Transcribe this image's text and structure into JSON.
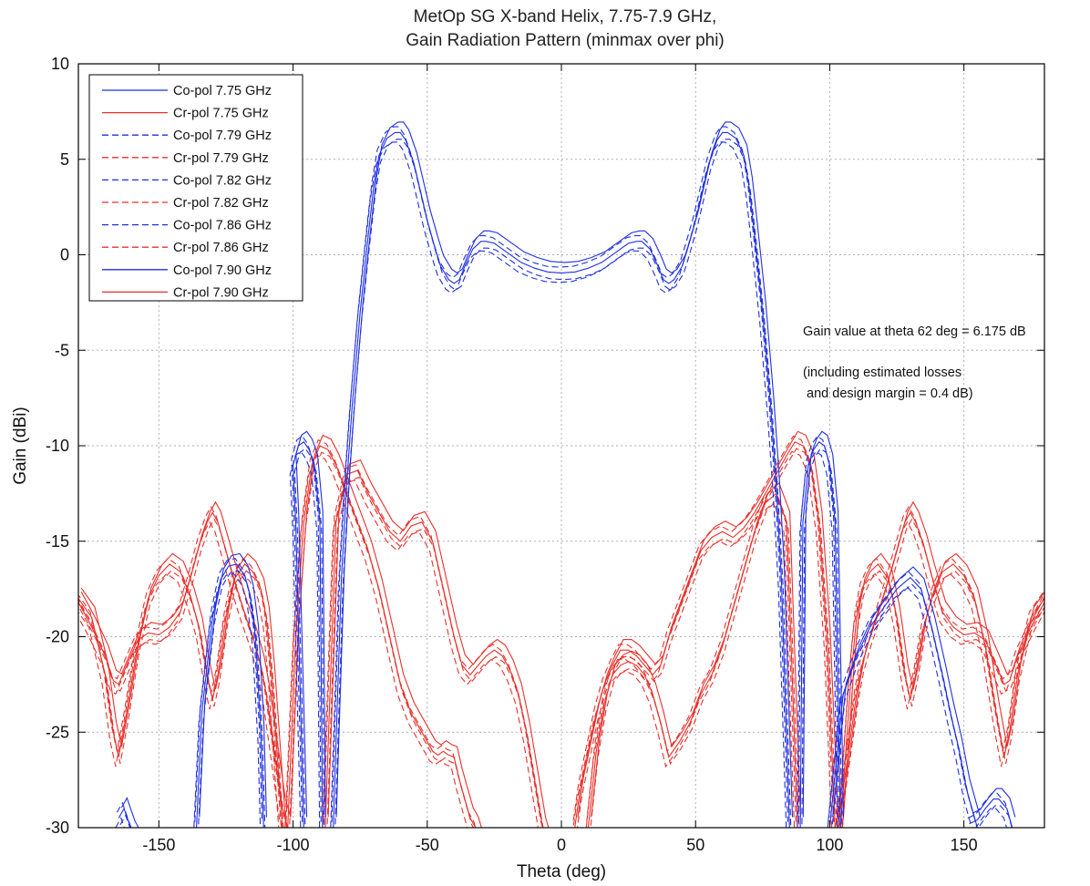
{
  "chart_data": {
    "type": "line",
    "title": [
      "MetOp SG X-band Helix, 7.75-7.9 GHz,",
      "Gain Radiation Pattern (minmax over phi)"
    ],
    "xlabel": "Theta (deg)",
    "ylabel": "Gain (dBi)",
    "xlim": [
      -180,
      180
    ],
    "ylim": [
      -30,
      10
    ],
    "xticks": [
      -150,
      -100,
      -50,
      0,
      50,
      100,
      150
    ],
    "yticks": [
      10,
      5,
      0,
      -5,
      -10,
      -15,
      -20,
      -25,
      -30
    ],
    "grid": true,
    "legend_position": "top-left",
    "colors": {
      "copol": "#1f2fe0",
      "crpol": "#e8302b"
    },
    "series": [
      {
        "name": "Co-pol 7.75 GHz",
        "pol": "co",
        "style": "solid",
        "freq": 7.75
      },
      {
        "name": "Cr-pol 7.75 GHz",
        "pol": "cr",
        "style": "solid",
        "freq": 7.75
      },
      {
        "name": "Co-pol 7.79 GHz",
        "pol": "co",
        "style": "dashed",
        "freq": 7.79
      },
      {
        "name": "Cr-pol 7.79 GHz",
        "pol": "cr",
        "style": "dashed",
        "freq": 7.79
      },
      {
        "name": "Co-pol 7.82 GHz",
        "pol": "co",
        "style": "dashed",
        "freq": 7.82
      },
      {
        "name": "Cr-pol 7.82 GHz",
        "pol": "cr",
        "style": "dashed",
        "freq": 7.82
      },
      {
        "name": "Co-pol 7.86 GHz",
        "pol": "co",
        "style": "dashed",
        "freq": 7.86
      },
      {
        "name": "Cr-pol 7.86 GHz",
        "pol": "cr",
        "style": "dashed",
        "freq": 7.86
      },
      {
        "name": "Co-pol 7.90 GHz",
        "pol": "co",
        "style": "solid",
        "freq": 7.9
      },
      {
        "name": "Cr-pol 7.90 GHz",
        "pol": "cr",
        "style": "solid",
        "freq": 7.9
      }
    ],
    "copol_envelope": {
      "x": [
        -85,
        -82,
        -80,
        -78,
        -75,
        -72,
        -70,
        -68,
        -65,
        -62,
        -60,
        -58,
        -55,
        -52,
        -50,
        -47,
        -45,
        -42,
        -40,
        -38,
        -36,
        -33,
        -30,
        -28,
        -25,
        -22,
        -20,
        -15,
        -10,
        -5,
        0,
        5,
        10,
        15,
        20,
        22,
        25,
        28,
        30,
        33,
        36,
        38,
        40,
        42,
        45,
        47,
        50,
        52,
        55,
        58,
        60,
        62,
        65,
        68,
        70,
        72,
        75,
        78,
        80,
        82,
        85
      ],
      "y": [
        -30,
        -17,
        -12,
        -8,
        -3,
        1,
        3.5,
        5.2,
        6.1,
        6.4,
        6.4,
        6.0,
        4.8,
        3.0,
        1.8,
        0.3,
        -0.6,
        -1.3,
        -1.5,
        -1.3,
        -0.6,
        0.3,
        0.7,
        0.7,
        0.6,
        0.3,
        0.1,
        -0.4,
        -0.7,
        -0.9,
        -0.95,
        -0.9,
        -0.7,
        -0.4,
        0.1,
        0.3,
        0.6,
        0.7,
        0.7,
        0.3,
        -0.6,
        -1.3,
        -1.5,
        -1.3,
        -0.6,
        0.3,
        1.8,
        3.0,
        4.8,
        6.0,
        6.4,
        6.4,
        6.1,
        5.2,
        3.5,
        1,
        -3,
        -8,
        -12,
        -17,
        -30
      ]
    },
    "copol_sidelobes": [
      {
        "x": [
          -96,
          -99,
          -100,
          -98,
          -96,
          -94,
          -92,
          -90,
          -89
        ],
        "y": [
          -30,
          -14,
          -11,
          -10,
          -9.8,
          -10.2,
          -11,
          -14,
          -30
        ]
      },
      {
        "x": [
          -136,
          -134,
          -130,
          -127,
          -124,
          -121,
          -118,
          -116,
          -114,
          -112,
          -111
        ],
        "y": [
          -30,
          -24,
          -19,
          -17,
          -16.3,
          -16.2,
          -16.8,
          -17.8,
          -20,
          -25,
          -30
        ]
      },
      {
        "x": [
          -165,
          -163,
          -160,
          -157,
          -155
        ],
        "y": [
          -29.5,
          -29,
          -30.2,
          -31,
          -31
        ]
      },
      {
        "x": [
          89,
          90,
          92,
          94,
          96,
          98,
          100,
          102,
          104
        ],
        "y": [
          -30,
          -14,
          -11,
          -10.2,
          -9.8,
          -10,
          -11,
          -14,
          -30
        ]
      },
      {
        "x": [
          100,
          105,
          110,
          115,
          120,
          125,
          130,
          134,
          138,
          142,
          145,
          148,
          151,
          155
        ],
        "y": [
          -30,
          -23,
          -21,
          -19.5,
          -18.5,
          -17.5,
          -16.9,
          -17.5,
          -19.5,
          -22,
          -24,
          -25.8,
          -28,
          -30
        ]
      },
      {
        "x": [
          152,
          155,
          158,
          161,
          163,
          166,
          168
        ],
        "y": [
          -29.8,
          -29.6,
          -29,
          -28.5,
          -28.5,
          -29,
          -30
        ]
      }
    ],
    "crpol_curves": [
      {
        "x": [
          -180,
          -175,
          -170,
          -167,
          -165,
          -162,
          -158,
          -154,
          -150,
          -146,
          -142,
          -138,
          -135,
          -132,
          -130,
          -128,
          -125,
          -122,
          -118,
          -115,
          -112,
          -110,
          -108,
          -106,
          -104,
          -102
        ],
        "y": [
          -18,
          -19,
          -22,
          -25,
          -26.3,
          -24,
          -20.5,
          -18,
          -16.8,
          -16.2,
          -16.6,
          -18,
          -19.5,
          -22,
          -23.3,
          -22,
          -19,
          -17,
          -16.2,
          -16.6,
          -17.5,
          -19,
          -22,
          -26,
          -30,
          -32
        ]
      },
      {
        "x": [
          -180,
          -175,
          -170,
          -167,
          -165,
          -162,
          -158,
          -154,
          -150,
          -146,
          -142,
          -138,
          -135,
          -132,
          -130,
          -128,
          -125,
          -122,
          -118,
          -115,
          -112,
          -110,
          -108,
          -106,
          -104,
          -102
        ],
        "y": [
          -18.2,
          -19.5,
          -21,
          -22.3,
          -22.5,
          -21.5,
          -20.2,
          -19.8,
          -19.9,
          -19.5,
          -18.7,
          -16.8,
          -15.2,
          -14,
          -13.5,
          -14,
          -15.5,
          -17,
          -18.8,
          -20,
          -21.5,
          -23,
          -25,
          -27,
          -29,
          -30
        ]
      },
      {
        "x": [
          -102,
          -99,
          -96,
          -93,
          -90,
          -87,
          -84,
          -80,
          -76,
          -72,
          -68,
          -64,
          -60,
          -56,
          -52,
          -50,
          -48,
          -46,
          -44,
          -42,
          -40,
          -38,
          -36,
          -34,
          -32,
          -30
        ],
        "y": [
          -30,
          -20,
          -14,
          -11,
          -10,
          -10.2,
          -11,
          -12.5,
          -14,
          -15.5,
          -17.5,
          -20,
          -22.5,
          -24,
          -25,
          -25.5,
          -26,
          -26.2,
          -26,
          -26.2,
          -26.3,
          -27.5,
          -28.5,
          -29.5,
          -30,
          -31
        ]
      },
      {
        "x": [
          -88,
          -84,
          -80,
          -76,
          -72,
          -68,
          -64,
          -60,
          -56,
          -52,
          -48,
          -44,
          -40,
          -37,
          -34,
          -31,
          -28,
          -25,
          -22,
          -19,
          -16,
          -13,
          -10,
          -7,
          -5
        ],
        "y": [
          -30,
          -14,
          -11.5,
          -11.3,
          -12.5,
          -13.5,
          -14.5,
          -15,
          -14.2,
          -14,
          -15,
          -17.5,
          -20,
          -21.5,
          -22,
          -21.5,
          -21,
          -20.7,
          -21,
          -21.8,
          -23,
          -25,
          -27.5,
          -30,
          -31
        ]
      },
      {
        "x": [
          180,
          175,
          170,
          167,
          165,
          162,
          158,
          154,
          150,
          146,
          142,
          138,
          135,
          132,
          130,
          128,
          125,
          122,
          118,
          115,
          112,
          110,
          108,
          106,
          104,
          102
        ],
        "y": [
          -18,
          -19,
          -22,
          -25,
          -26.3,
          -24,
          -20.5,
          -18,
          -16.8,
          -16.2,
          -16.6,
          -18,
          -19.5,
          -22,
          -23.3,
          -22,
          -19,
          -17,
          -16.2,
          -16.6,
          -17.5,
          -19,
          -22,
          -26,
          -30,
          -32
        ]
      },
      {
        "x": [
          180,
          175,
          170,
          167,
          165,
          162,
          158,
          154,
          150,
          146,
          142,
          138,
          135,
          132,
          130,
          128,
          125,
          122,
          118,
          115,
          112,
          110,
          108,
          106,
          104,
          102
        ],
        "y": [
          -18.2,
          -19.5,
          -21,
          -22.3,
          -22.5,
          -21.5,
          -20.2,
          -19.8,
          -19.9,
          -19.5,
          -18.7,
          -16.8,
          -15.2,
          -14,
          -13.5,
          -14,
          -15.5,
          -17,
          -18.8,
          -20,
          -21.5,
          -23,
          -25,
          -27,
          -29,
          -30
        ]
      },
      {
        "x": [
          102,
          99,
          96,
          93,
          90,
          87,
          84,
          80,
          76,
          72,
          68,
          64,
          60,
          56,
          52,
          48,
          44,
          40,
          37,
          34,
          31,
          28,
          25,
          22,
          19,
          16,
          13,
          10,
          7,
          5
        ],
        "y": [
          -30,
          -20,
          -14,
          -11,
          -10,
          -9.8,
          -10.5,
          -11.5,
          -12.5,
          -13.5,
          -14.3,
          -14.8,
          -14.5,
          -14.8,
          -15.5,
          -17,
          -18.5,
          -20,
          -21.5,
          -22,
          -21.5,
          -21,
          -20.7,
          -20.7,
          -21.5,
          -22.5,
          -24,
          -26,
          -28,
          -30
        ]
      },
      {
        "x": [
          88,
          84,
          80,
          76,
          72,
          68,
          64,
          60,
          56,
          52,
          48,
          44,
          40,
          37,
          34,
          31,
          28,
          25,
          22,
          19,
          16,
          13,
          10
        ],
        "y": [
          -30,
          -14,
          -12.5,
          -13,
          -14.5,
          -16.5,
          -18.5,
          -20.5,
          -22,
          -23,
          -24.5,
          -25.5,
          -26.3,
          -24.5,
          -23,
          -22,
          -21.5,
          -21.3,
          -21.5,
          -22,
          -23.5,
          -26,
          -30
        ]
      }
    ]
  },
  "annotation": {
    "line1": "Gain value at theta 62 deg = 6.175 dB",
    "line2": "(including estimated losses",
    "line3": " and design margin = 0.4 dB)"
  }
}
